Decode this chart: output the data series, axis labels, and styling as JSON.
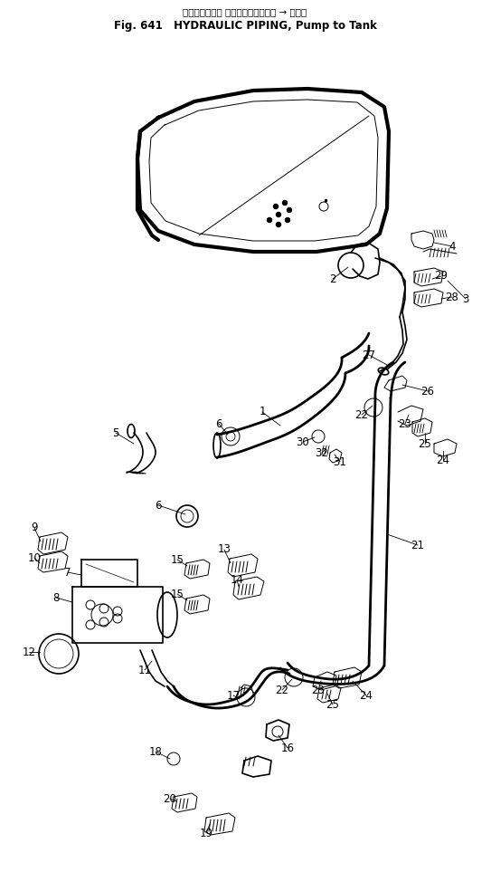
{
  "title_japanese": "ハイドロリック ハイピング、ボンプ → タンク",
  "title_english": "Fig. 641   HYDRAULIC PIPING, Pump to Tank",
  "background": "#ffffff",
  "lc": "#000000",
  "fig_width": 5.43,
  "fig_height": 9.63,
  "dpi": 100
}
